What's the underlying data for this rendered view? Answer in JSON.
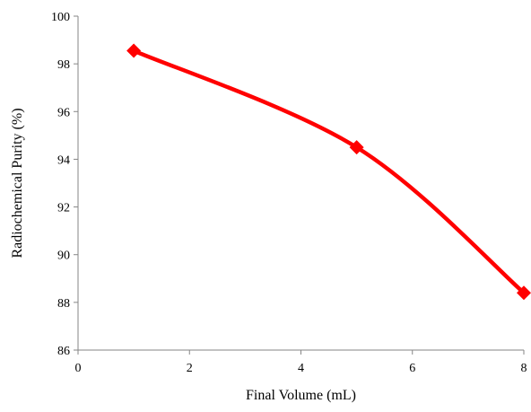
{
  "chart_data": {
    "type": "line",
    "title": "",
    "xlabel": "Final Volume (mL)",
    "ylabel": "Radiochemical Purity (%)",
    "xlim": [
      0,
      8
    ],
    "ylim": [
      86,
      100
    ],
    "xticks": [
      0,
      2,
      4,
      6,
      8
    ],
    "yticks": [
      86,
      88,
      90,
      92,
      94,
      96,
      98,
      100
    ],
    "grid": false,
    "legend": "none",
    "smooth": true,
    "series": [
      {
        "color": "#ff0000",
        "marker": "diamond",
        "x": [
          1,
          5,
          8
        ],
        "y": [
          98.55,
          94.5,
          88.4
        ]
      }
    ]
  }
}
